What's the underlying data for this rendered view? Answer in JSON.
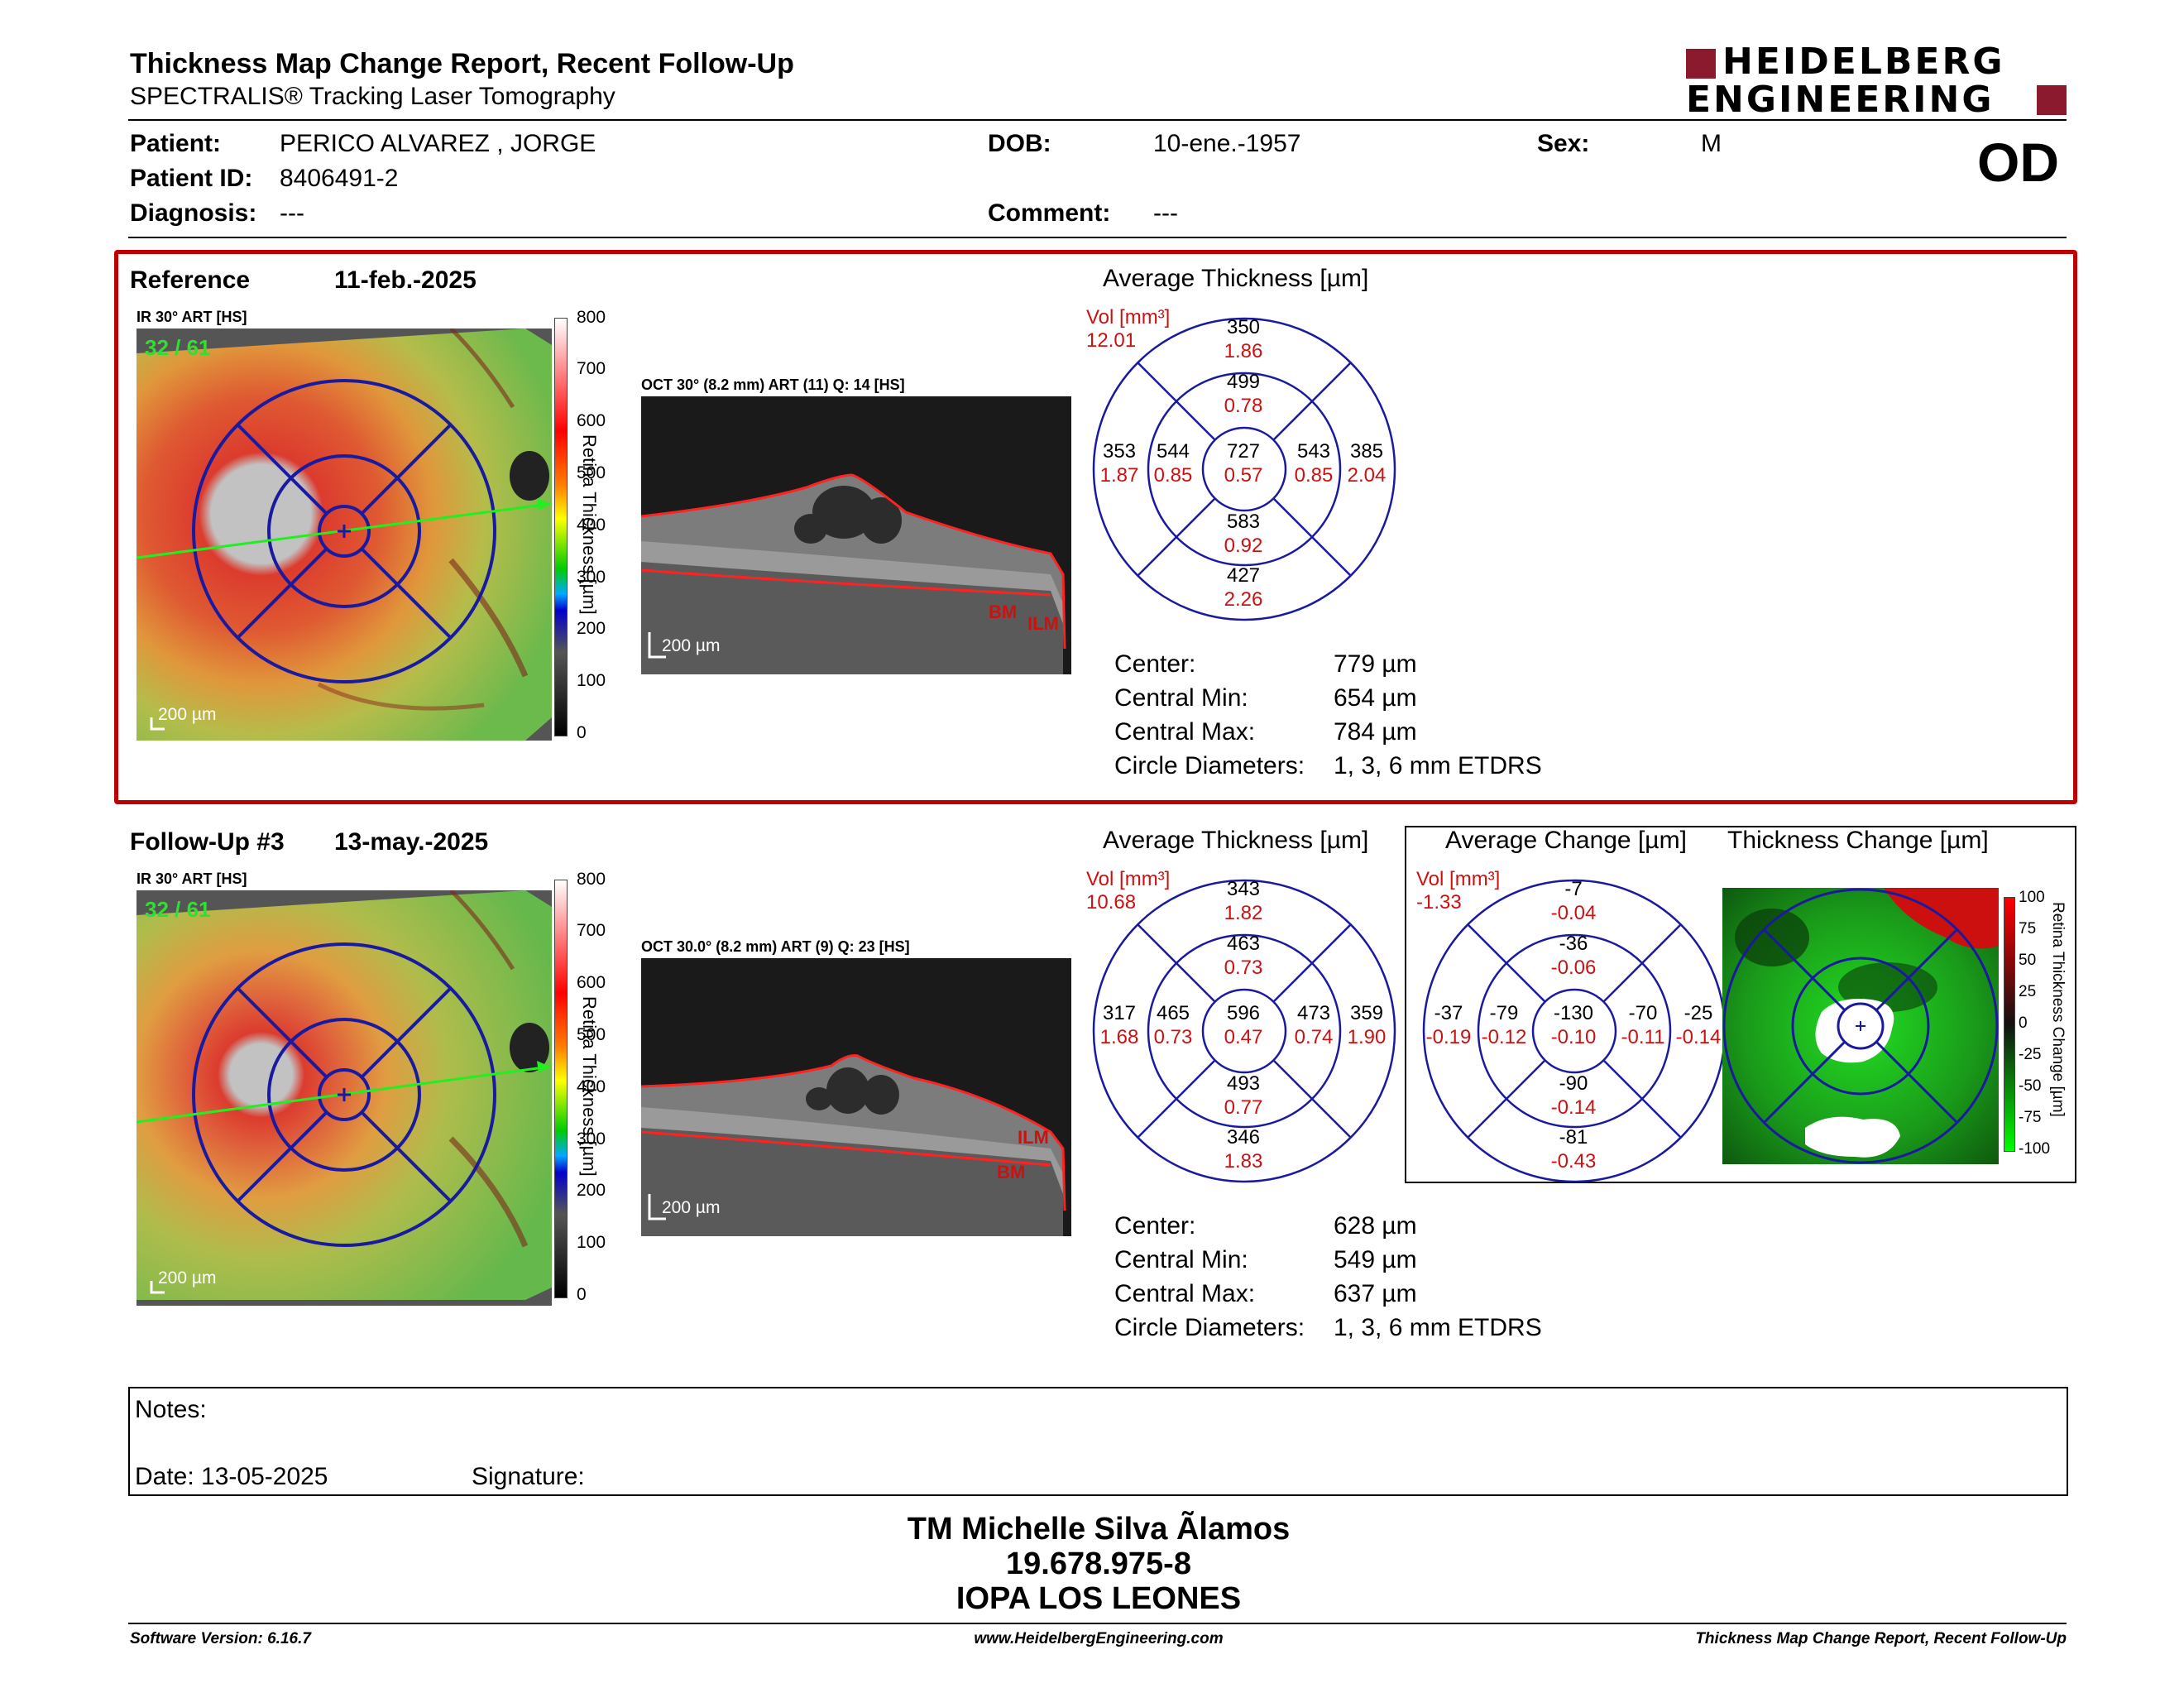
{
  "header": {
    "title": "Thickness Map Change Report, Recent Follow-Up",
    "subtitle": "SPECTRALIS® Tracking Laser Tomography",
    "logo_line1": "HEIDELBERG",
    "logo_line2": "ENGINEERING",
    "eye": "OD"
  },
  "patient": {
    "patient_label": "Patient:",
    "patient_value": "PERICO ALVAREZ , JORGE",
    "id_label": "Patient ID:",
    "id_value": "8406491-2",
    "diagnosis_label": "Diagnosis:",
    "diagnosis_value": "---",
    "dob_label": "DOB:",
    "dob_value": "10-ene.-1957",
    "comment_label": "Comment:",
    "comment_value": "---",
    "sex_label": "Sex:",
    "sex_value": "M"
  },
  "reference": {
    "label": "Reference",
    "date": "11-feb.-2025",
    "ir_label": "IR 30° ART [HS]",
    "ir_frames": "32 / 61",
    "oct_label": "OCT 30° (8.2 mm) ART (11) Q: 14 [HS]",
    "scale_bar": "200 µm",
    "bm": "BM",
    "ilm": "ILM",
    "chart_title": "Average Thickness [µm]",
    "vol_label": "Vol [mm³]",
    "vol_value": "12.01",
    "sectors": {
      "c": [
        "727",
        "0.57"
      ],
      "in": [
        "499",
        "0.78"
      ],
      "ii": [
        "583",
        "0.92"
      ],
      "it": [
        "544",
        "0.85"
      ],
      "in2": [
        "543",
        "0.85"
      ],
      "on": [
        "350",
        "1.86"
      ],
      "oi": [
        "427",
        "2.26"
      ],
      "ot": [
        "353",
        "1.87"
      ],
      "on2": [
        "385",
        "2.04"
      ]
    },
    "center_label": "Center:",
    "center_value": "779 µm",
    "cmin_label": "Central Min:",
    "cmin_value": "654 µm",
    "cmax_label": "Central Max:",
    "cmax_value": "784 µm",
    "circ_label": "Circle Diameters:",
    "circ_value": "1, 3, 6 mm ETDRS"
  },
  "followup": {
    "label": "Follow-Up #3",
    "date": "13-may.-2025",
    "ir_label": "IR 30° ART [HS]",
    "ir_frames": "32 / 61",
    "oct_label": "OCT 30.0° (8.2 mm) ART (9) Q: 23 [HS]",
    "scale_bar": "200 µm",
    "bm": "BM",
    "ilm": "ILM",
    "chart_title": "Average Thickness [µm]",
    "vol_label": "Vol [mm³]",
    "vol_value": "10.68",
    "sectors": {
      "c": [
        "596",
        "0.47"
      ],
      "in": [
        "463",
        "0.73"
      ],
      "ii": [
        "493",
        "0.77"
      ],
      "it": [
        "465",
        "0.73"
      ],
      "in2": [
        "473",
        "0.74"
      ],
      "on": [
        "343",
        "1.82"
      ],
      "oi": [
        "346",
        "1.83"
      ],
      "ot": [
        "317",
        "1.68"
      ],
      "on2": [
        "359",
        "1.90"
      ]
    },
    "center_label": "Center:",
    "center_value": "628 µm",
    "cmin_label": "Central Min:",
    "cmin_value": "549 µm",
    "cmax_label": "Central Max:",
    "cmax_value": "637 µm",
    "circ_label": "Circle Diameters:",
    "circ_value": "1, 3, 6 mm ETDRS"
  },
  "change": {
    "chart_title": "Average Change [µm]",
    "vol_label": "Vol [mm³]",
    "vol_value": "-1.33",
    "sectors": {
      "c": [
        "-130",
        "-0.10"
      ],
      "in": [
        "-36",
        "-0.06"
      ],
      "ii": [
        "-90",
        "-0.14"
      ],
      "it": [
        "-79",
        "-0.12"
      ],
      "in2": [
        "-70",
        "-0.11"
      ],
      "on": [
        "-7",
        "-0.04"
      ],
      "oi": [
        "-81",
        "-0.43"
      ],
      "ot": [
        "-37",
        "-0.19"
      ],
      "on2": [
        "-25",
        "-0.14"
      ]
    },
    "map_title": "Thickness Change [µm]",
    "map_axis_label": "Retina Thickness Change [µm]",
    "map_ticks": [
      "100",
      "75",
      "50",
      "25",
      "0",
      "-25",
      "-50",
      "-75",
      "-100"
    ]
  },
  "thickness_scale": {
    "axis_label": "Retina Thickness [µm]",
    "ticks": [
      "800",
      "700",
      "600",
      "500",
      "400",
      "300",
      "200",
      "100",
      "0"
    ]
  },
  "notes": {
    "notes_label": "Notes:",
    "date_label": "Date: 13-05-2025",
    "signature_label": "Signature:"
  },
  "signer": {
    "name": "TM Michelle Silva Ãlamos",
    "rut": "19.678.975-8",
    "org": "IOPA LOS LEONES"
  },
  "footer": {
    "version": "Software Version: 6.16.7",
    "url": "www.HeidelbergEngineering.com",
    "report": "Thickness Map Change Report, Recent Follow-Up"
  },
  "colors": {
    "accent_red": "#c00000",
    "grid_blue": "#1a1aa0",
    "value_red": "#cc1111"
  }
}
